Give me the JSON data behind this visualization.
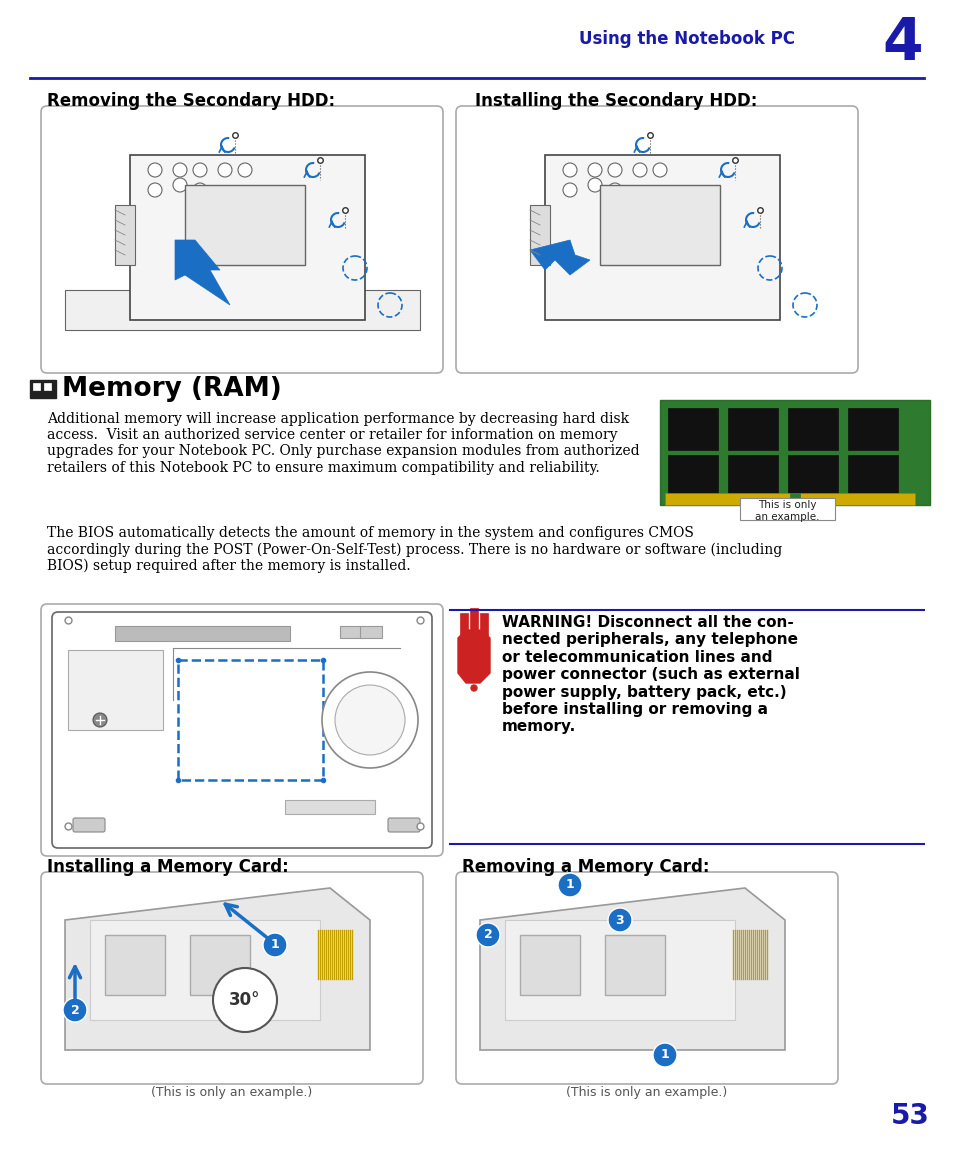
{
  "page_bg": "#ffffff",
  "header_text": "Using the Notebook PC",
  "header_chapter": "4",
  "header_color": "#1a1aaa",
  "header_line_color": "#1a1aaa",
  "section_title_color": "#000000",
  "body_text1": "Additional memory will increase application performance by decreasing hard disk\naccess.  Visit an authorized service center or retailer for information on memory\nupgrades for your Notebook PC. Only purchase expansion modules from authorized\nretailers of this Notebook PC to ensure maximum compatibility and reliability.",
  "body_text2": "The BIOS automatically detects the amount of memory in the system and configures CMOS\naccordingly during the POST (Power-On-Self-Test) process. There is no hardware or software (including\nBIOS) setup required after the memory is installed.",
  "ram_label": "This is only\nan example.",
  "warning_text": "WARNING! Disconnect all the con-\nnected peripherals, any telephone\nor telecommunication lines and\npower connector (such as external\npower supply, battery pack, etc.)\nbefore installing or removing a\nmemory.",
  "warning_line_color": "#1a1aaa",
  "hdd_left_title": "Removing the Secondary HDD:",
  "hdd_right_title": "Installing the Secondary HDD:",
  "mem_left_title": "Installing a Memory Card:",
  "mem_right_title": "Removing a Memory Card:",
  "caption_left": "(This is only an example.)",
  "caption_right": "(This is only an example.)",
  "page_number": "53",
  "page_number_color": "#1a1aaa",
  "title_font_color": "#000000",
  "text_color": "#000000",
  "blue": "#1a6fc4",
  "gray_line": "#888888",
  "dark_line": "#444444"
}
